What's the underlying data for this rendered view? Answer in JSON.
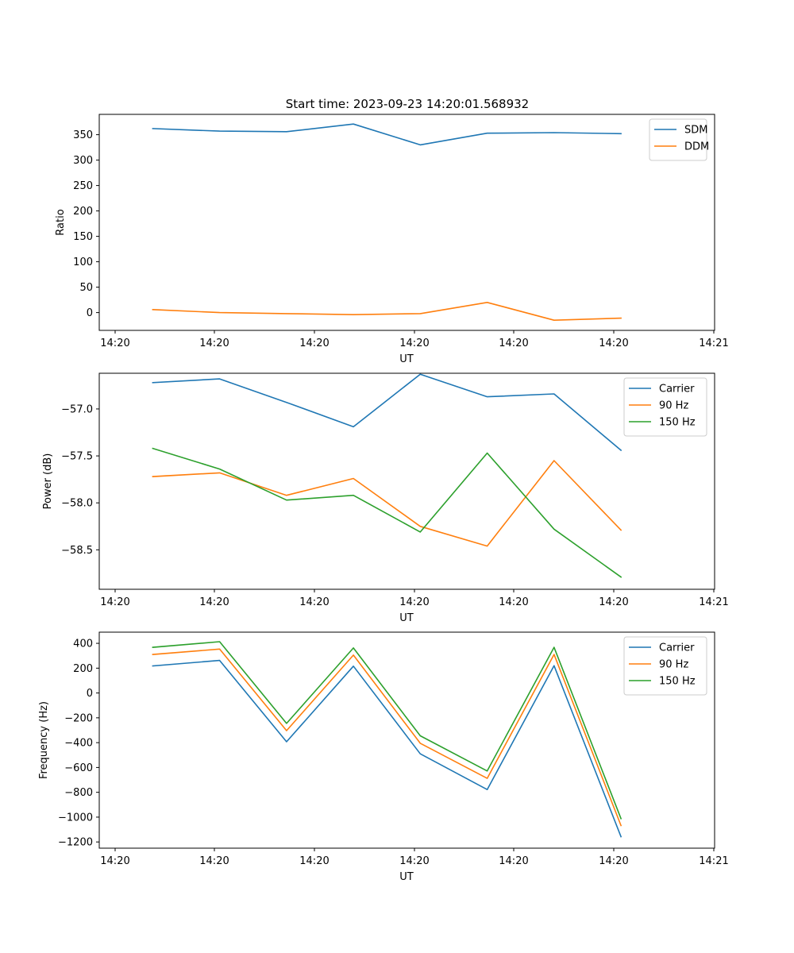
{
  "title": "Start time: 2023-09-23 14:20:01.568932",
  "chart_data": [
    {
      "type": "line",
      "title": "Start time: 2023-09-23 14:20:01.568932",
      "xlabel": "UT",
      "ylabel": "Ratio",
      "x_tick_labels": [
        "14:20",
        "14:20",
        "14:20",
        "14:20",
        "14:20",
        "14:20",
        "14:21"
      ],
      "x": [
        1,
        2,
        3,
        4,
        5,
        6,
        7,
        8
      ],
      "xlim": [
        0.2,
        9.4
      ],
      "ylim": [
        -35,
        390
      ],
      "y_ticks": [
        0,
        50,
        100,
        150,
        200,
        250,
        300,
        350
      ],
      "y_tick_labels": [
        "0",
        "50",
        "100",
        "150",
        "200",
        "250",
        "300",
        "350"
      ],
      "legend_position": "upper-right",
      "series": [
        {
          "name": "SDM",
          "color": "#1f77b4",
          "values": [
            362,
            357,
            356,
            371,
            330,
            353,
            354,
            352
          ]
        },
        {
          "name": "DDM",
          "color": "#ff7f0e",
          "values": [
            6,
            0,
            -2,
            -4,
            -2,
            20,
            -15,
            -11
          ]
        }
      ]
    },
    {
      "type": "line",
      "title": "",
      "xlabel": "UT",
      "ylabel": "Power (dB)",
      "x_tick_labels": [
        "14:20",
        "14:20",
        "14:20",
        "14:20",
        "14:20",
        "14:20",
        "14:21"
      ],
      "x": [
        1,
        2,
        3,
        4,
        5,
        6,
        7,
        8
      ],
      "xlim": [
        0.2,
        9.4
      ],
      "ylim": [
        -58.92,
        -56.62
      ],
      "y_ticks": [
        -58.5,
        -58.0,
        -57.5,
        -57.0
      ],
      "y_tick_labels": [
        "−58.5",
        "−58.0",
        "−57.5",
        "−57.0"
      ],
      "legend_position": "upper-right",
      "series": [
        {
          "name": "Carrier",
          "color": "#1f77b4",
          "values": [
            -56.72,
            -56.68,
            -56.93,
            -57.19,
            -56.63,
            -56.87,
            -56.84,
            -57.44
          ]
        },
        {
          "name": "90 Hz",
          "color": "#ff7f0e",
          "values": [
            -57.72,
            -57.68,
            -57.92,
            -57.74,
            -58.25,
            -58.46,
            -57.55,
            -58.29
          ]
        },
        {
          "name": "150 Hz",
          "color": "#2ca02c",
          "values": [
            -57.42,
            -57.64,
            -57.97,
            -57.92,
            -58.31,
            -57.47,
            -58.28,
            -58.79
          ]
        }
      ]
    },
    {
      "type": "line",
      "title": "",
      "xlabel": "UT",
      "ylabel": "Frequency (Hz)",
      "x_tick_labels": [
        "14:20",
        "14:20",
        "14:20",
        "14:20",
        "14:20",
        "14:20",
        "14:21"
      ],
      "x": [
        1,
        2,
        3,
        4,
        5,
        6,
        7,
        8
      ],
      "xlim": [
        0.2,
        9.4
      ],
      "ylim": [
        -1250,
        490
      ],
      "y_ticks": [
        -1200,
        -1000,
        -800,
        -600,
        -400,
        -200,
        0,
        200,
        400
      ],
      "y_tick_labels": [
        "−1200",
        "−1000",
        "−800",
        "−600",
        "−400",
        "−200",
        "0",
        "200",
        "400"
      ],
      "legend_position": "upper-right",
      "series": [
        {
          "name": "Carrier",
          "color": "#1f77b4",
          "values": [
            218,
            262,
            -393,
            216,
            -490,
            -778,
            220,
            -1158
          ]
        },
        {
          "name": "90 Hz",
          "color": "#ff7f0e",
          "values": [
            310,
            354,
            -303,
            305,
            -405,
            -688,
            310,
            -1068
          ]
        },
        {
          "name": "150 Hz",
          "color": "#2ca02c",
          "values": [
            368,
            413,
            -245,
            363,
            -345,
            -628,
            368,
            -1012
          ]
        }
      ]
    }
  ]
}
